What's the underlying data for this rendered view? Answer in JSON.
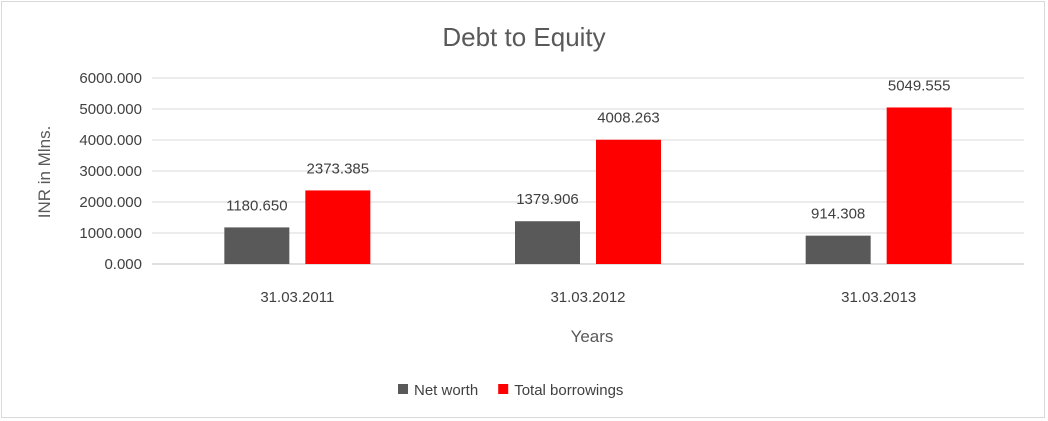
{
  "chart_data": {
    "type": "bar",
    "title": "Debt to Equity",
    "xlabel": "Years",
    "ylabel": "INR in Mlns.",
    "categories": [
      "31.03.2011",
      "31.03.2012",
      "31.03.2013"
    ],
    "series": [
      {
        "name": "Net worth",
        "color": "#595959",
        "values": [
          1180.65,
          1379.906,
          914.308
        ],
        "labels": [
          "1180.650",
          "1379.906",
          "914.308"
        ]
      },
      {
        "name": "Total borrowings",
        "color": "#ff0000",
        "values": [
          2373.385,
          4008.263,
          5049.555
        ],
        "labels": [
          "2373.385",
          "4008.263",
          "5049.555"
        ]
      }
    ],
    "ylim": [
      0,
      6000
    ],
    "yticks": [
      {
        "value": 0,
        "label": "0.000"
      },
      {
        "value": 1000,
        "label": "1000.000"
      },
      {
        "value": 2000,
        "label": "2000.000"
      },
      {
        "value": 3000,
        "label": "3000.000"
      },
      {
        "value": 4000,
        "label": "4000.000"
      },
      {
        "value": 5000,
        "label": "5000.000"
      },
      {
        "value": 6000,
        "label": "6000.000"
      }
    ],
    "grid": true,
    "legend_position": "bottom"
  }
}
